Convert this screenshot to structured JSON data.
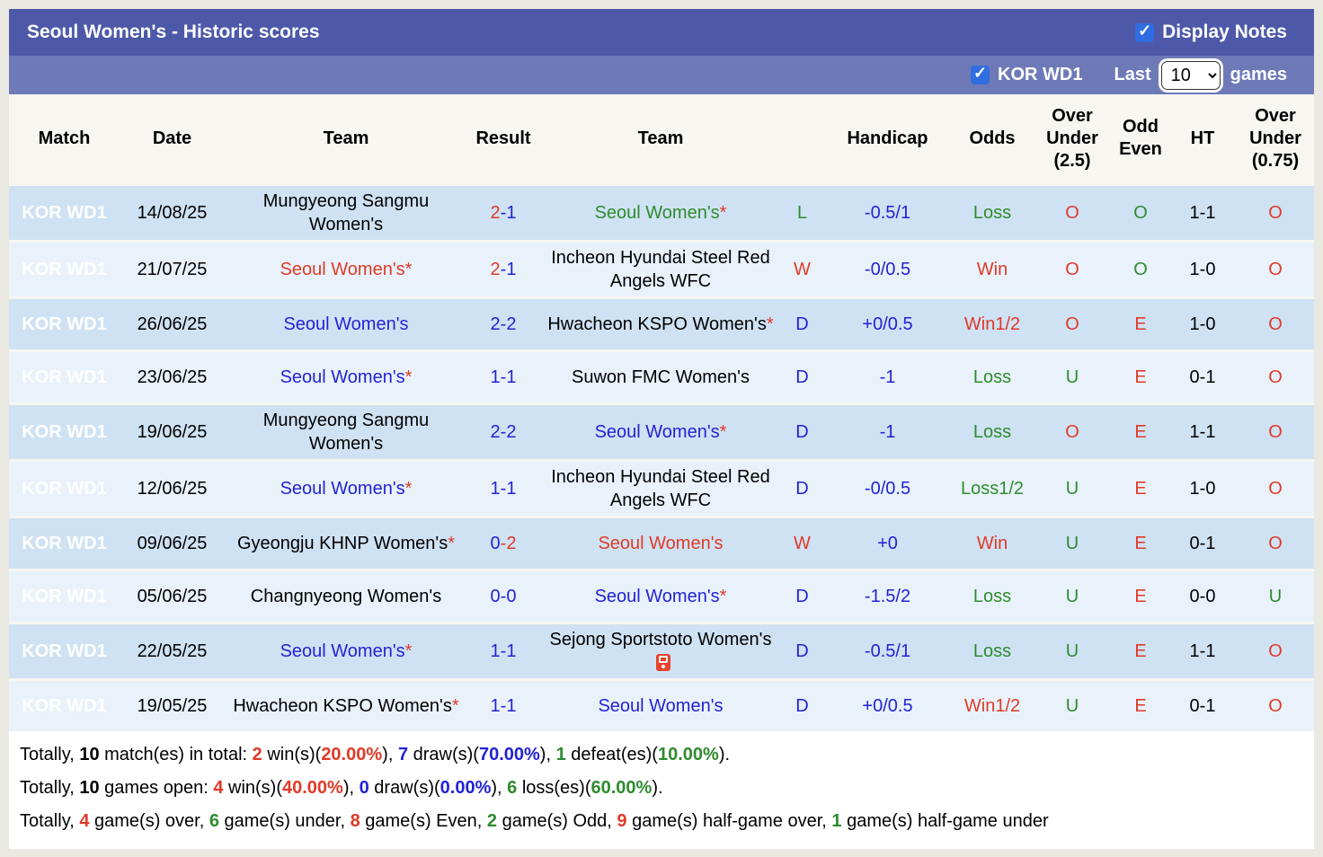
{
  "palette": {
    "red": "#e03a28",
    "blue": "#2222d6",
    "green": "#2e8b2e",
    "black": "#000000",
    "white": "#ffffff",
    "match_cell_bg": "#ca525b",
    "title_bar_bg": "#4d59a8",
    "filter_bar_bg": "#6e7ab8",
    "row_dark_bg": "#cfe2f3",
    "row_light_bg": "#e9f2fb"
  },
  "header": {
    "title": "Seoul Women's - Historic scores",
    "display_notes": {
      "label": "Display Notes",
      "checked": true
    },
    "league_filter": {
      "label": "KOR WD1",
      "checked": true
    },
    "last_label": "Last",
    "games_select": {
      "value": "10",
      "options": [
        "10"
      ]
    },
    "games_label": "games"
  },
  "table": {
    "star_char": "*",
    "result_separator": "-",
    "columns": [
      "Match",
      "Date",
      "Team",
      "Result",
      "Team",
      "",
      "Handicap",
      "Odds",
      "Over Under (2.5)",
      "Odd Even",
      "HT",
      "Over Under (0.75)"
    ],
    "rows": [
      {
        "match": "KOR WD1",
        "date": "14/08/25",
        "home": {
          "text": "Mungyeong Sangmu Women's",
          "color": "black",
          "star": false
        },
        "result": {
          "home": "2",
          "home_color": "red",
          "away": "1",
          "away_color": "blue"
        },
        "away": {
          "text": "Seoul Women's",
          "color": "green",
          "star": true
        },
        "wdl": {
          "text": "L",
          "color": "green"
        },
        "handicap": {
          "text": "-0.5/1",
          "color": "blue"
        },
        "odds": {
          "text": "Loss",
          "color": "green"
        },
        "ou25": {
          "text": "O",
          "color": "red"
        },
        "odd_even": {
          "text": "O",
          "color": "green"
        },
        "ht": "1-1",
        "ou075": {
          "text": "O",
          "color": "red"
        }
      },
      {
        "match": "KOR WD1",
        "date": "21/07/25",
        "home": {
          "text": "Seoul Women's",
          "color": "red",
          "star": true
        },
        "result": {
          "home": "2",
          "home_color": "red",
          "away": "1",
          "away_color": "blue"
        },
        "away": {
          "text": "Incheon Hyundai Steel Red Angels WFC",
          "color": "black",
          "star": false
        },
        "wdl": {
          "text": "W",
          "color": "red"
        },
        "handicap": {
          "text": "-0/0.5",
          "color": "blue"
        },
        "odds": {
          "text": "Win",
          "color": "red"
        },
        "ou25": {
          "text": "O",
          "color": "red"
        },
        "odd_even": {
          "text": "O",
          "color": "green"
        },
        "ht": "1-0",
        "ou075": {
          "text": "O",
          "color": "red"
        }
      },
      {
        "match": "KOR WD1",
        "date": "26/06/25",
        "home": {
          "text": "Seoul Women's",
          "color": "blue",
          "star": false
        },
        "result": {
          "home": "2",
          "home_color": "blue",
          "away": "2",
          "away_color": "blue"
        },
        "away": {
          "text": "Hwacheon KSPO Women's",
          "color": "black",
          "star": true
        },
        "wdl": {
          "text": "D",
          "color": "blue"
        },
        "handicap": {
          "text": "+0/0.5",
          "color": "blue"
        },
        "odds": {
          "text": "Win1/2",
          "color": "red"
        },
        "ou25": {
          "text": "O",
          "color": "red"
        },
        "odd_even": {
          "text": "E",
          "color": "red"
        },
        "ht": "1-0",
        "ou075": {
          "text": "O",
          "color": "red"
        }
      },
      {
        "match": "KOR WD1",
        "date": "23/06/25",
        "home": {
          "text": "Seoul Women's",
          "color": "blue",
          "star": true
        },
        "result": {
          "home": "1",
          "home_color": "blue",
          "away": "1",
          "away_color": "blue"
        },
        "away": {
          "text": "Suwon FMC Women's",
          "color": "black",
          "star": false
        },
        "wdl": {
          "text": "D",
          "color": "blue"
        },
        "handicap": {
          "text": "-1",
          "color": "blue"
        },
        "odds": {
          "text": "Loss",
          "color": "green"
        },
        "ou25": {
          "text": "U",
          "color": "green"
        },
        "odd_even": {
          "text": "E",
          "color": "red"
        },
        "ht": "0-1",
        "ou075": {
          "text": "O",
          "color": "red"
        }
      },
      {
        "match": "KOR WD1",
        "date": "19/06/25",
        "home": {
          "text": "Mungyeong Sangmu Women's",
          "color": "black",
          "star": false
        },
        "result": {
          "home": "2",
          "home_color": "blue",
          "away": "2",
          "away_color": "blue"
        },
        "away": {
          "text": "Seoul Women's",
          "color": "blue",
          "star": true
        },
        "wdl": {
          "text": "D",
          "color": "blue"
        },
        "handicap": {
          "text": "-1",
          "color": "blue"
        },
        "odds": {
          "text": "Loss",
          "color": "green"
        },
        "ou25": {
          "text": "O",
          "color": "red"
        },
        "odd_even": {
          "text": "E",
          "color": "red"
        },
        "ht": "1-1",
        "ou075": {
          "text": "O",
          "color": "red"
        }
      },
      {
        "match": "KOR WD1",
        "date": "12/06/25",
        "home": {
          "text": "Seoul Women's",
          "color": "blue",
          "star": true
        },
        "result": {
          "home": "1",
          "home_color": "blue",
          "away": "1",
          "away_color": "blue"
        },
        "away": {
          "text": "Incheon Hyundai Steel Red Angels WFC",
          "color": "black",
          "star": false
        },
        "wdl": {
          "text": "D",
          "color": "blue"
        },
        "handicap": {
          "text": "-0/0.5",
          "color": "blue"
        },
        "odds": {
          "text": "Loss1/2",
          "color": "green"
        },
        "ou25": {
          "text": "U",
          "color": "green"
        },
        "odd_even": {
          "text": "E",
          "color": "red"
        },
        "ht": "1-0",
        "ou075": {
          "text": "O",
          "color": "red"
        }
      },
      {
        "match": "KOR WD1",
        "date": "09/06/25",
        "home": {
          "text": "Gyeongju KHNP Women's",
          "color": "black",
          "star": true
        },
        "result": {
          "home": "0",
          "home_color": "blue",
          "away": "2",
          "away_color": "red"
        },
        "away": {
          "text": "Seoul Women's",
          "color": "red",
          "star": false
        },
        "wdl": {
          "text": "W",
          "color": "red"
        },
        "handicap": {
          "text": "+0",
          "color": "blue"
        },
        "odds": {
          "text": "Win",
          "color": "red"
        },
        "ou25": {
          "text": "U",
          "color": "green"
        },
        "odd_even": {
          "text": "E",
          "color": "red"
        },
        "ht": "0-1",
        "ou075": {
          "text": "O",
          "color": "red"
        }
      },
      {
        "match": "KOR WD1",
        "date": "05/06/25",
        "home": {
          "text": "Changnyeong Women's",
          "color": "black",
          "star": false
        },
        "result": {
          "home": "0",
          "home_color": "blue",
          "away": "0",
          "away_color": "blue"
        },
        "away": {
          "text": "Seoul Women's",
          "color": "blue",
          "star": true
        },
        "wdl": {
          "text": "D",
          "color": "blue"
        },
        "handicap": {
          "text": "-1.5/2",
          "color": "blue"
        },
        "odds": {
          "text": "Loss",
          "color": "green"
        },
        "ou25": {
          "text": "U",
          "color": "green"
        },
        "odd_even": {
          "text": "E",
          "color": "red"
        },
        "ht": "0-0",
        "ou075": {
          "text": "U",
          "color": "green"
        }
      },
      {
        "match": "KOR WD1",
        "date": "22/05/25",
        "home": {
          "text": "Seoul Women's",
          "color": "blue",
          "star": true
        },
        "result": {
          "home": "1",
          "home_color": "blue",
          "away": "1",
          "away_color": "blue"
        },
        "away": {
          "text": "Sejong Sportstoto Women's",
          "color": "black",
          "star": false,
          "icon": "red-card-icon"
        },
        "wdl": {
          "text": "D",
          "color": "blue"
        },
        "handicap": {
          "text": "-0.5/1",
          "color": "blue"
        },
        "odds": {
          "text": "Loss",
          "color": "green"
        },
        "ou25": {
          "text": "U",
          "color": "green"
        },
        "odd_even": {
          "text": "E",
          "color": "red"
        },
        "ht": "1-1",
        "ou075": {
          "text": "O",
          "color": "red"
        }
      },
      {
        "match": "KOR WD1",
        "date": "19/05/25",
        "home": {
          "text": "Hwacheon KSPO Women's",
          "color": "black",
          "star": true
        },
        "result": {
          "home": "1",
          "home_color": "blue",
          "away": "1",
          "away_color": "blue"
        },
        "away": {
          "text": "Seoul Women's",
          "color": "blue",
          "star": false
        },
        "wdl": {
          "text": "D",
          "color": "blue"
        },
        "handicap": {
          "text": "+0/0.5",
          "color": "blue"
        },
        "odds": {
          "text": "Win1/2",
          "color": "red"
        },
        "ou25": {
          "text": "U",
          "color": "green"
        },
        "odd_even": {
          "text": "E",
          "color": "red"
        },
        "ht": "0-1",
        "ou075": {
          "text": "O",
          "color": "red"
        }
      }
    ]
  },
  "summary": {
    "lines": [
      {
        "segments": [
          {
            "t": "Totally, "
          },
          {
            "t": "10",
            "b": 1
          },
          {
            "t": " match(es) in total: "
          },
          {
            "t": "2",
            "b": 1,
            "c": "red"
          },
          {
            "t": " win(s)("
          },
          {
            "t": "20.00%",
            "b": 1,
            "c": "red"
          },
          {
            "t": "), "
          },
          {
            "t": "7",
            "b": 1,
            "c": "blue"
          },
          {
            "t": " draw(s)("
          },
          {
            "t": "70.00%",
            "b": 1,
            "c": "blue"
          },
          {
            "t": "), "
          },
          {
            "t": "1",
            "b": 1,
            "c": "green"
          },
          {
            "t": " defeat(es)("
          },
          {
            "t": "10.00%",
            "b": 1,
            "c": "green"
          },
          {
            "t": ")."
          }
        ]
      },
      {
        "segments": [
          {
            "t": "Totally, "
          },
          {
            "t": "10",
            "b": 1
          },
          {
            "t": " games open: "
          },
          {
            "t": "4",
            "b": 1,
            "c": "red"
          },
          {
            "t": " win(s)("
          },
          {
            "t": "40.00%",
            "b": 1,
            "c": "red"
          },
          {
            "t": "), "
          },
          {
            "t": "0",
            "b": 1,
            "c": "blue"
          },
          {
            "t": " draw(s)("
          },
          {
            "t": "0.00%",
            "b": 1,
            "c": "blue"
          },
          {
            "t": "), "
          },
          {
            "t": "6",
            "b": 1,
            "c": "green"
          },
          {
            "t": " loss(es)("
          },
          {
            "t": "60.00%",
            "b": 1,
            "c": "green"
          },
          {
            "t": ")."
          }
        ]
      },
      {
        "segments": [
          {
            "t": "Totally, "
          },
          {
            "t": "4",
            "b": 1,
            "c": "red"
          },
          {
            "t": " game(s) over, "
          },
          {
            "t": "6",
            "b": 1,
            "c": "green"
          },
          {
            "t": " game(s) under, "
          },
          {
            "t": "8",
            "b": 1,
            "c": "red"
          },
          {
            "t": " game(s) Even, "
          },
          {
            "t": "2",
            "b": 1,
            "c": "green"
          },
          {
            "t": " game(s) Odd, "
          },
          {
            "t": "9",
            "b": 1,
            "c": "red"
          },
          {
            "t": " game(s) half-game over, "
          },
          {
            "t": "1",
            "b": 1,
            "c": "green"
          },
          {
            "t": " game(s) half-game under"
          }
        ]
      }
    ]
  }
}
